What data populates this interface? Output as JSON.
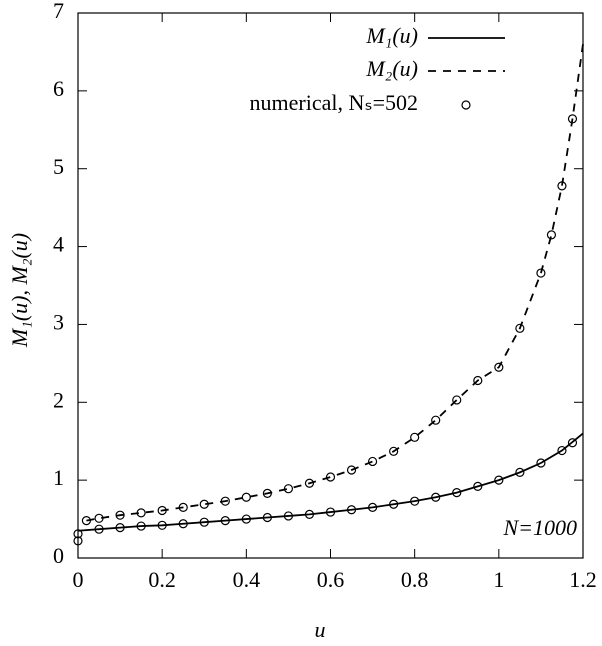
{
  "chart_data": {
    "type": "line",
    "xlabel": "u",
    "ylabel": "M₁(u), M₂(u)",
    "annotation": "N=1000",
    "xlim": [
      0,
      1.2
    ],
    "ylim": [
      0,
      7
    ],
    "xticks": [
      0,
      0.2,
      0.4,
      0.6,
      0.8,
      1,
      1.2
    ],
    "yticks": [
      0,
      1,
      2,
      3,
      4,
      5,
      6,
      7
    ],
    "series": [
      {
        "name": "M₁(u)",
        "color": "#000000",
        "style": "solid",
        "x": [
          0,
          0.05,
          0.1,
          0.15,
          0.2,
          0.25,
          0.3,
          0.35,
          0.4,
          0.45,
          0.5,
          0.55,
          0.6,
          0.65,
          0.7,
          0.75,
          0.8,
          0.85,
          0.9,
          0.95,
          1,
          1.05,
          1.1,
          1.15,
          1.2
        ],
        "values": [
          0.35,
          0.37,
          0.39,
          0.41,
          0.42,
          0.44,
          0.46,
          0.48,
          0.5,
          0.52,
          0.54,
          0.56,
          0.59,
          0.62,
          0.65,
          0.69,
          0.73,
          0.78,
          0.84,
          0.92,
          1.0,
          1.1,
          1.22,
          1.38,
          1.6
        ]
      },
      {
        "name": "M₂(u)",
        "color": "#000000",
        "style": "dashed",
        "x": [
          0.02,
          0.05,
          0.1,
          0.15,
          0.2,
          0.25,
          0.3,
          0.35,
          0.4,
          0.45,
          0.5,
          0.55,
          0.6,
          0.65,
          0.7,
          0.75,
          0.8,
          0.85,
          0.9,
          0.95,
          1,
          1.05,
          1.1,
          1.125,
          1.15,
          1.175,
          1.2
        ],
        "values": [
          0.48,
          0.51,
          0.55,
          0.58,
          0.61,
          0.65,
          0.69,
          0.73,
          0.78,
          0.83,
          0.89,
          0.96,
          1.04,
          1.13,
          1.24,
          1.37,
          1.55,
          1.77,
          2.03,
          2.28,
          2.45,
          2.95,
          3.66,
          4.15,
          4.78,
          5.64,
          6.6
        ]
      },
      {
        "name": "numerical, Nₛ=502",
        "color": "#000000",
        "style": "points",
        "x": [
          0,
          0,
          0.05,
          0.1,
          0.15,
          0.2,
          0.25,
          0.3,
          0.35,
          0.4,
          0.45,
          0.5,
          0.55,
          0.6,
          0.65,
          0.7,
          0.75,
          0.8,
          0.85,
          0.9,
          0.95,
          1,
          1.05,
          1.1,
          1.15,
          1.175,
          0.02,
          0.05,
          0.1,
          0.15,
          0.2,
          0.25,
          0.3,
          0.35,
          0.4,
          0.45,
          0.5,
          0.55,
          0.6,
          0.65,
          0.7,
          0.75,
          0.8,
          0.85,
          0.9,
          0.95,
          1,
          1.05,
          1.1,
          1.125,
          1.15,
          1.175
        ],
        "values": [
          0.22,
          0.31,
          0.37,
          0.39,
          0.41,
          0.42,
          0.44,
          0.46,
          0.48,
          0.5,
          0.52,
          0.54,
          0.56,
          0.59,
          0.62,
          0.65,
          0.69,
          0.73,
          0.78,
          0.84,
          0.92,
          1.0,
          1.1,
          1.22,
          1.38,
          1.48,
          0.48,
          0.51,
          0.55,
          0.58,
          0.61,
          0.65,
          0.69,
          0.73,
          0.78,
          0.83,
          0.89,
          0.96,
          1.04,
          1.13,
          1.24,
          1.37,
          1.55,
          1.77,
          2.03,
          2.28,
          2.45,
          2.95,
          3.66,
          4.15,
          4.78,
          5.64
        ]
      }
    ]
  }
}
